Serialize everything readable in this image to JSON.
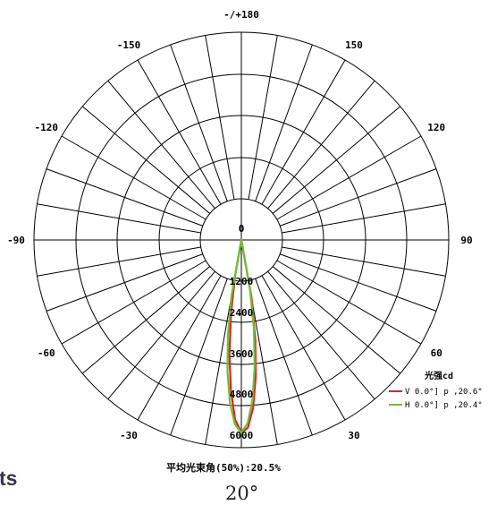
{
  "chart_data": {
    "type": "polar",
    "unit_label": "光强cd",
    "r_max": 6000,
    "ring_ticks": [
      "0",
      "1200",
      "2400",
      "3600",
      "4800",
      "6000"
    ],
    "angle_labels": [
      {
        "angle": 180,
        "text": "-/+180"
      },
      {
        "angle": 150,
        "text": "150"
      },
      {
        "angle": -150,
        "text": "-150"
      },
      {
        "angle": 120,
        "text": "120"
      },
      {
        "angle": -120,
        "text": "-120"
      },
      {
        "angle": 90,
        "text": "90"
      },
      {
        "angle": -90,
        "text": "-90"
      },
      {
        "angle": 60,
        "text": "60"
      },
      {
        "angle": -60,
        "text": "-60"
      },
      {
        "angle": 30,
        "text": "30"
      },
      {
        "angle": -30,
        "text": "-30"
      }
    ],
    "series": [
      {
        "name": "V 0.0°",
        "legend_text": "V 0.0°] p ,20.6°",
        "color": "#e0221b",
        "points": [
          [
            -11,
            0
          ],
          [
            -10,
            1100
          ],
          [
            -8,
            2300
          ],
          [
            -6,
            3550
          ],
          [
            -4,
            4650
          ],
          [
            -2,
            5550
          ],
          [
            0,
            5950
          ],
          [
            2,
            5800
          ],
          [
            4,
            5200
          ],
          [
            6,
            4250
          ],
          [
            8,
            3100
          ],
          [
            10,
            1800
          ],
          [
            12,
            0
          ]
        ]
      },
      {
        "name": "H 0.0°",
        "legend_text": "H 0.0°] p ,20.4°",
        "color": "#6cbf3a",
        "points": [
          [
            -12,
            0
          ],
          [
            -10,
            1750
          ],
          [
            -8,
            3000
          ],
          [
            -6,
            4100
          ],
          [
            -4,
            5050
          ],
          [
            -2,
            5700
          ],
          [
            0,
            5950
          ],
          [
            2,
            5650
          ],
          [
            4,
            4950
          ],
          [
            6,
            3950
          ],
          [
            8,
            2800
          ],
          [
            10,
            1550
          ],
          [
            12,
            0
          ]
        ]
      }
    ]
  },
  "beam_text": "平均光束角(50%):20.5%",
  "beam_angle": "20°",
  "cut_text": "ts"
}
